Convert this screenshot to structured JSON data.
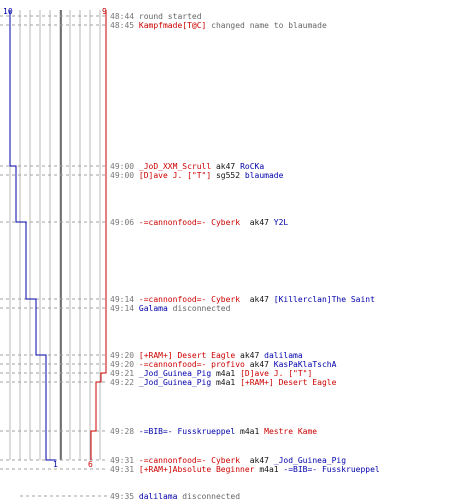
{
  "colors": {
    "blue": "#0000aa",
    "red": "#cc0000",
    "grid": "#b8b8b8",
    "text_gray": "#666666"
  },
  "scores": {
    "blue_start": "10",
    "red_start": "9",
    "blue_end": "1",
    "red_end": "6"
  },
  "events": [
    {
      "time": "48:44",
      "parts": [
        {
          "text": "round started",
          "c": "gray"
        }
      ]
    },
    {
      "time": "48:45",
      "parts": [
        {
          "text": "Kampfmade[T@C]",
          "c": "red"
        },
        {
          "text": " changed name to blaumade",
          "c": "gray"
        }
      ]
    },
    {
      "time": "49:00",
      "parts": [
        {
          "text": "_JoD_XXM_Scrull",
          "c": "red"
        },
        {
          "text": " ak47 ",
          "c": "blk"
        },
        {
          "text": "RoCKa",
          "c": "blue"
        }
      ]
    },
    {
      "time": "49:00",
      "parts": [
        {
          "text": "[D]ave J. [\"T\"]",
          "c": "red"
        },
        {
          "text": " sg552 ",
          "c": "blk"
        },
        {
          "text": "blaumade",
          "c": "blue"
        }
      ]
    },
    {
      "time": "49:06",
      "parts": [
        {
          "text": "-=cannonfood=- Cyberk",
          "c": "red"
        },
        {
          "text": "  ak47 ",
          "c": "blk"
        },
        {
          "text": "Y2L",
          "c": "blue"
        }
      ]
    },
    {
      "time": "49:14",
      "parts": [
        {
          "text": "-=cannonfood=- Cyberk",
          "c": "red"
        },
        {
          "text": "  ak47 ",
          "c": "blk"
        },
        {
          "text": "[Killerclan]The Saint",
          "c": "blue"
        }
      ]
    },
    {
      "time": "49:14",
      "parts": [
        {
          "text": "Galama",
          "c": "blue"
        },
        {
          "text": " disconnected",
          "c": "gray"
        }
      ]
    },
    {
      "time": "49:20",
      "parts": [
        {
          "text": "[+RAM+] Desert Eagle",
          "c": "red"
        },
        {
          "text": " ak47 ",
          "c": "blk"
        },
        {
          "text": "dalilama",
          "c": "blue"
        }
      ]
    },
    {
      "time": "49:20",
      "parts": [
        {
          "text": "-=cannonfood=- profivo",
          "c": "red"
        },
        {
          "text": " ak47 ",
          "c": "blk"
        },
        {
          "text": "KasPaKlaTschA",
          "c": "blue"
        }
      ]
    },
    {
      "time": "49:21",
      "parts": [
        {
          "text": "_Jod_Guinea_Pig",
          "c": "blue"
        },
        {
          "text": " m4a1 ",
          "c": "blk"
        },
        {
          "text": "[D]ave J. [\"T\"]",
          "c": "red"
        }
      ]
    },
    {
      "time": "49:22",
      "parts": [
        {
          "text": "_Jod_Guinea_Pig",
          "c": "blue"
        },
        {
          "text": " m4a1 ",
          "c": "blk"
        },
        {
          "text": "[+RAM+] Desert Eagle",
          "c": "red"
        }
      ]
    },
    {
      "time": "49:28",
      "parts": [
        {
          "text": "-=BIB=- Fusskrueppel",
          "c": "blue"
        },
        {
          "text": " m4a1 ",
          "c": "blk"
        },
        {
          "text": "Mestre Kame",
          "c": "red"
        }
      ]
    },
    {
      "time": "49:31",
      "parts": [
        {
          "text": "-=cannonfood=- Cyberk",
          "c": "red"
        },
        {
          "text": "  ak47 ",
          "c": "blk"
        },
        {
          "text": "_Jod_Guinea_Pig",
          "c": "blue"
        }
      ]
    },
    {
      "time": "49:31",
      "parts": [
        {
          "text": "[+RAM+]Absolute Beginner",
          "c": "red"
        },
        {
          "text": " m4a1 ",
          "c": "blk"
        },
        {
          "text": "-=BIB=- Fusskrueppel",
          "c": "blue"
        }
      ]
    },
    {
      "time": "49:35",
      "parts": [
        {
          "text": "dalilama",
          "c": "blue"
        },
        {
          "text": " disconnected",
          "c": "gray"
        }
      ]
    }
  ]
}
